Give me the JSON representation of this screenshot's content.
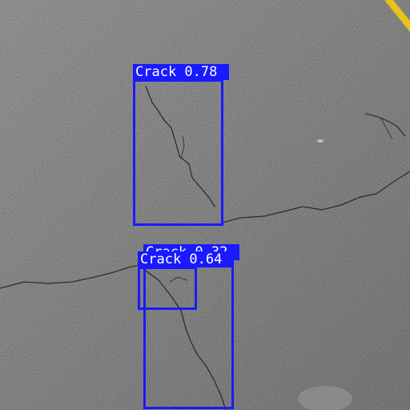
{
  "colors": {
    "box": "#1a1aff",
    "label_text": "#ffffff"
  },
  "detections": [
    {
      "label": "Crack 0.78",
      "class": "Crack",
      "confidence": 0.78
    },
    {
      "label": "Crack 0.32",
      "class": "Crack",
      "confidence": 0.32
    },
    {
      "label": "Crack 0.64",
      "class": "Crack",
      "confidence": 0.64
    }
  ]
}
